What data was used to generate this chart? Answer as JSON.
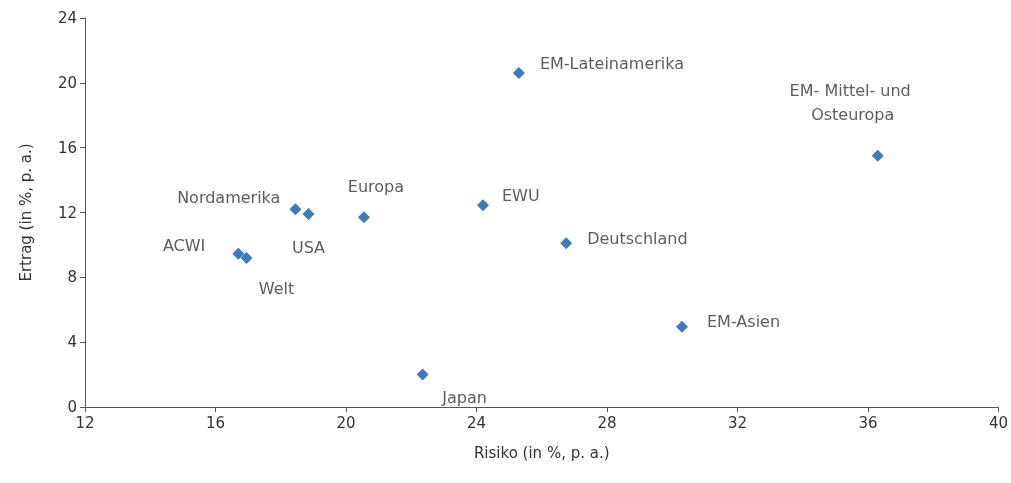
{
  "chart_data": {
    "type": "scatter",
    "xlabel": "Risiko (in %, p. a.)",
    "ylabel": "Ertrag (in %, p. a.)",
    "xlim": [
      12,
      40
    ],
    "xticks": [
      12,
      16,
      20,
      24,
      28,
      32,
      36,
      40
    ],
    "ylim": [
      0,
      24
    ],
    "yticks": [
      0,
      4,
      8,
      12,
      16,
      20,
      24
    ],
    "grid": false,
    "legend": false,
    "marker": "diamond",
    "series": [
      {
        "name": "EM-Lateinamerika",
        "color": "#0f5aa6",
        "x": [
          25.3
        ],
        "values": [
          20.6
        ]
      },
      {
        "name": "EM- Mittel- und Osteuropa",
        "color": "#0f5aa6",
        "x": [
          36.3
        ],
        "values": [
          15.5
        ]
      },
      {
        "name": "Nordamerika",
        "color": "#0f5aa6",
        "x": [
          18.45
        ],
        "values": [
          12.2
        ]
      },
      {
        "name": "USA",
        "color": "#0f5aa6",
        "x": [
          18.85
        ],
        "values": [
          11.9
        ]
      },
      {
        "name": "Europa",
        "color": "#0f5aa6",
        "x": [
          20.55
        ],
        "values": [
          11.7
        ]
      },
      {
        "name": "EWU",
        "color": "#0f5aa6",
        "x": [
          24.2
        ],
        "values": [
          12.45
        ]
      },
      {
        "name": "Deutschland",
        "color": "#0f5aa6",
        "x": [
          26.75
        ],
        "values": [
          10.1
        ]
      },
      {
        "name": "ACWI",
        "color": "#0f5aa6",
        "x": [
          16.7
        ],
        "values": [
          9.45
        ]
      },
      {
        "name": "Welt",
        "color": "#0f5aa6",
        "x": [
          16.95
        ],
        "values": [
          9.2
        ]
      },
      {
        "name": "Japan",
        "color": "#0f5aa6",
        "x": [
          22.35
        ],
        "values": [
          2.0
        ]
      },
      {
        "name": "EM-Asien",
        "color": "#0f5aa6",
        "x": [
          30.3
        ],
        "values": [
          4.95
        ]
      }
    ]
  }
}
